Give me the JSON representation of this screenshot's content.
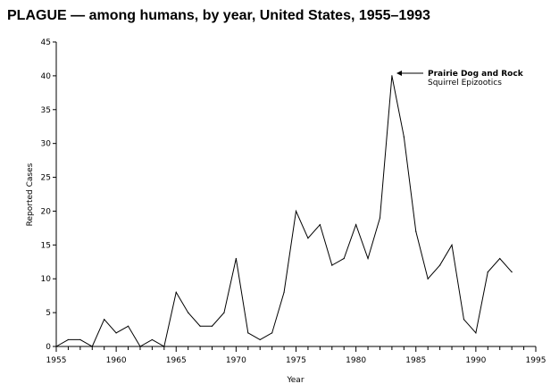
{
  "chart_data": {
    "type": "line",
    "title": "PLAGUE — among humans, by year, United States, 1955–1993",
    "xlabel": "Year",
    "ylabel": "Reported Cases",
    "xlim": [
      1955,
      1995
    ],
    "ylim": [
      0,
      45
    ],
    "xticks": [
      "1955",
      "1960",
      "1965",
      "1970",
      "1975",
      "1980",
      "1985",
      "1990",
      "1995"
    ],
    "yticks": [
      "0",
      "5",
      "10",
      "15",
      "20",
      "25",
      "30",
      "35",
      "40",
      "45"
    ],
    "grid": false,
    "line_color": "#000000",
    "x": [
      1955,
      1956,
      1957,
      1958,
      1959,
      1960,
      1961,
      1962,
      1963,
      1964,
      1965,
      1966,
      1967,
      1968,
      1969,
      1970,
      1971,
      1972,
      1973,
      1974,
      1975,
      1976,
      1977,
      1978,
      1979,
      1980,
      1981,
      1982,
      1983,
      1984,
      1985,
      1986,
      1987,
      1988,
      1989,
      1990,
      1991,
      1992,
      1993
    ],
    "values": [
      0,
      1,
      1,
      0,
      4,
      2,
      3,
      0,
      1,
      0,
      8,
      5,
      3,
      3,
      5,
      13,
      2,
      1,
      2,
      8,
      20,
      16,
      18,
      12,
      13,
      18,
      13,
      19,
      40,
      31,
      17,
      10,
      12,
      15,
      4,
      2,
      11,
      13,
      11
    ],
    "annotation": {
      "x": 1983,
      "y": 40,
      "line1": "Prairie Dog and Rock",
      "line2": "Squirrel Epizootics"
    }
  }
}
